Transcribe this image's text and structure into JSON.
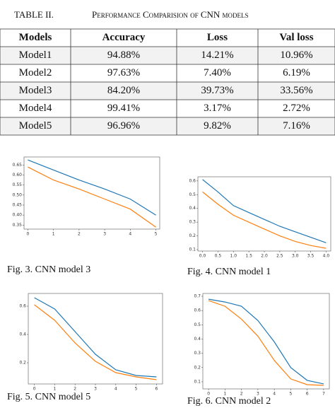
{
  "table_title": {
    "number": "TABLE II.",
    "text": "Performance Comparision of CNN models"
  },
  "table": {
    "header": [
      "Models",
      "Accuracy",
      "Loss",
      "Val loss"
    ],
    "rows": [
      [
        "Model1",
        "94.88%",
        "14.21%",
        "10.96%"
      ],
      [
        "Model2",
        "97.63%",
        "7.40%",
        "6.19%"
      ],
      [
        "Model3",
        "84.20%",
        "39.73%",
        "33.56%"
      ],
      [
        "Model4",
        "99.41%",
        "3.17%",
        "2.72%"
      ],
      [
        "Model5",
        "96.96%",
        "9.82%",
        "7.16%"
      ]
    ]
  },
  "figures": [
    {
      "caption": "Fig. 3.   CNN model 3",
      "chart_data": {
        "type": "line",
        "x": [
          0,
          1,
          2,
          3,
          4,
          5
        ],
        "xlim": [
          -0.15,
          5.15
        ],
        "xticks": [
          0,
          1,
          2,
          3,
          4,
          5
        ],
        "ylim": [
          0.33,
          0.69
        ],
        "yticks": [
          {
            "value": 0.35,
            "label": "0.35"
          },
          {
            "value": 0.4,
            "label": "0.40"
          },
          {
            "value": 0.45,
            "label": "0.45"
          },
          {
            "value": 0.5,
            "label": "0.50"
          },
          {
            "value": 0.55,
            "label": "0.55"
          },
          {
            "value": 0.6,
            "label": "0.60"
          },
          {
            "value": 0.65,
            "label": "0.65"
          }
        ],
        "series": [
          {
            "color": "#1f77b4",
            "values": [
              0.675,
              0.625,
              0.575,
              0.53,
              0.48,
              0.4
            ]
          },
          {
            "color": "#ff7f0e",
            "values": [
              0.64,
              0.575,
              0.53,
              0.48,
              0.43,
              0.34
            ]
          }
        ]
      }
    },
    {
      "caption": "Fig. 4.   CNN model 1",
      "chart_data": {
        "type": "line",
        "x": [
          0,
          0.5,
          1,
          1.5,
          2,
          2.5,
          3,
          3.5,
          4
        ],
        "xlim": [
          -0.15,
          4.15
        ],
        "xticks": [
          {
            "value": 0,
            "label": "0.0"
          },
          0.5,
          {
            "value": 1,
            "label": "1.0"
          },
          1.5,
          {
            "value": 2,
            "label": "2.0"
          },
          2.5,
          {
            "value": 3,
            "label": "3.0"
          },
          3.5,
          {
            "value": 4,
            "label": "4.0"
          }
        ],
        "ylim": [
          0.09,
          0.63
        ],
        "yticks": [
          0.1,
          0.2,
          0.3,
          0.4,
          0.5,
          0.6
        ],
        "series": [
          {
            "color": "#1f77b4",
            "values": [
              0.61,
              0.52,
              0.42,
              0.37,
              0.32,
              0.27,
              0.23,
              0.19,
              0.15
            ]
          },
          {
            "color": "#ff7f0e",
            "values": [
              0.52,
              0.43,
              0.35,
              0.3,
              0.25,
              0.2,
              0.16,
              0.13,
              0.11
            ]
          }
        ]
      }
    },
    {
      "caption": "Fig. 5.   CNN model 5",
      "chart_data": {
        "type": "line",
        "x": [
          0,
          1,
          2,
          3,
          4,
          5,
          6
        ],
        "xlim": [
          -0.3,
          6.3
        ],
        "xticks": [
          0,
          1,
          2,
          3,
          4,
          5,
          6
        ],
        "ylim": [
          0.05,
          0.69
        ],
        "yticks": [
          0.2,
          0.4,
          0.6
        ],
        "series": [
          {
            "color": "#1f77b4",
            "values": [
              0.66,
              0.58,
              0.42,
              0.26,
              0.15,
              0.11,
              0.1
            ]
          },
          {
            "color": "#ff7f0e",
            "values": [
              0.61,
              0.5,
              0.34,
              0.21,
              0.13,
              0.1,
              0.08
            ]
          }
        ]
      }
    },
    {
      "caption": "Fig. 6.   CNN model 2",
      "chart_data": {
        "type": "line",
        "x": [
          0,
          1,
          2,
          3,
          4,
          5,
          6,
          7
        ],
        "xlim": [
          -0.35,
          7.35
        ],
        "xticks": [
          0,
          1,
          2,
          3,
          4,
          5,
          6,
          7
        ],
        "ylim": [
          0.05,
          0.72
        ],
        "yticks": [
          0.1,
          0.2,
          0.3,
          0.4,
          0.5,
          0.6,
          0.7
        ],
        "series": [
          {
            "color": "#1f77b4",
            "values": [
              0.68,
              0.66,
              0.63,
              0.53,
              0.38,
              0.2,
              0.11,
              0.085
            ]
          },
          {
            "color": "#ff7f0e",
            "values": [
              0.67,
              0.63,
              0.54,
              0.42,
              0.25,
              0.12,
              0.08,
              0.075
            ]
          }
        ]
      }
    }
  ]
}
